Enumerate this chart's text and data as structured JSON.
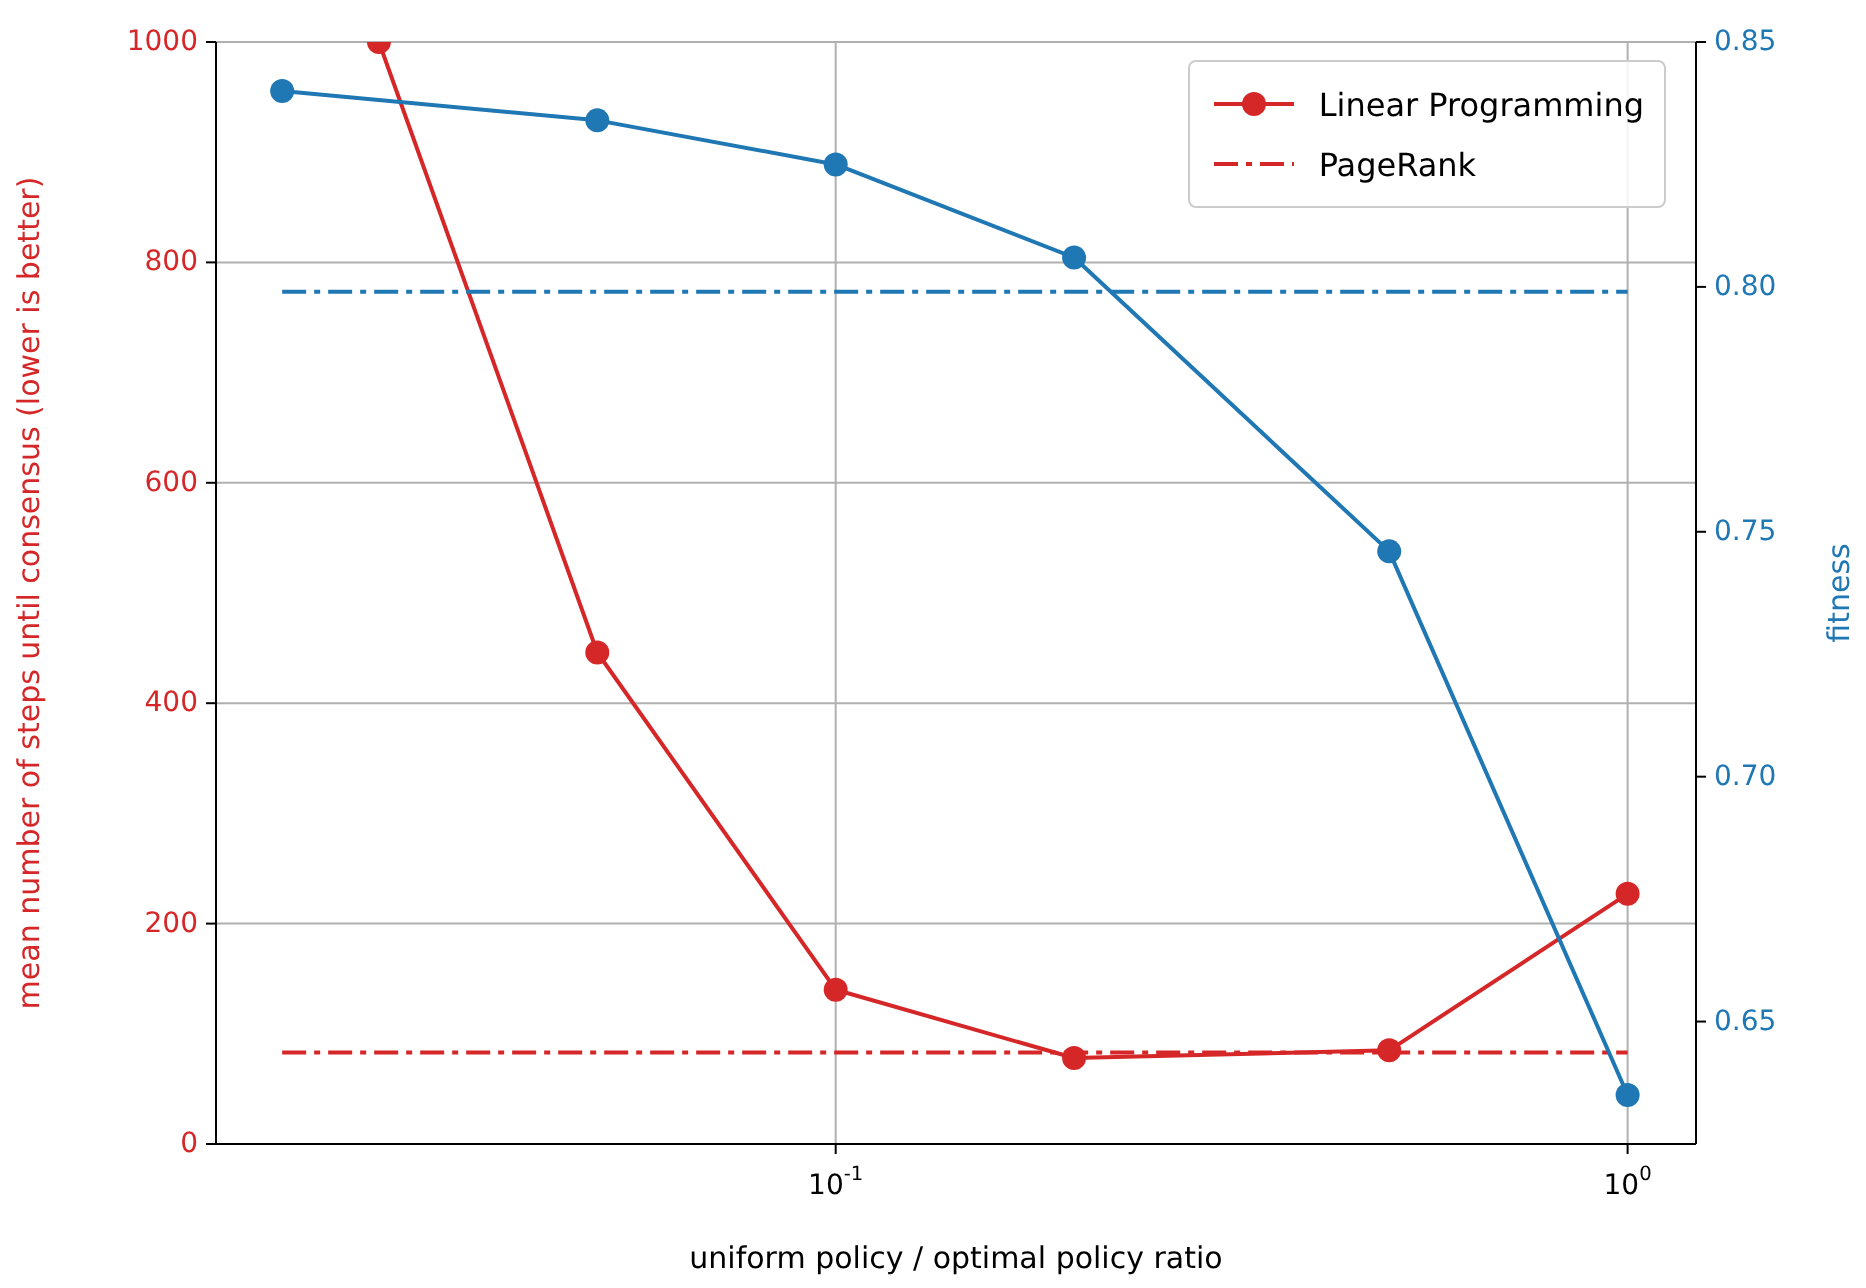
{
  "chart_data": {
    "type": "line",
    "xlabel": "uniform policy / optimal policy ratio",
    "ylabel": "mean number of steps until consensus (lower is better)",
    "y2label": "fitness",
    "log": "x",
    "xlim": [
      0.0165,
      1.22
    ],
    "xticks": [
      {
        "value": 0.1,
        "label": "10$^{-1}$"
      },
      {
        "value": 1,
        "label": "10$^{0}$"
      }
    ],
    "ylim": [
      0,
      1000
    ],
    "yticks": [
      0,
      200,
      400,
      600,
      800,
      1000
    ],
    "y2lim": [
      0.625,
      0.85
    ],
    "y2ticks": [
      0.65,
      {
        "value": 0.7,
        "label": "0.70"
      },
      0.75,
      {
        "value": 0.8,
        "label": "0.80"
      },
      0.85
    ],
    "grid": true,
    "legend": "top right",
    "series": [
      {
        "name": "Linear Programming",
        "color": "#d62728",
        "x": [
          0.0265,
          0.05,
          0.1,
          0.2,
          0.5,
          1
        ],
        "values": [
          1000,
          446,
          140,
          78,
          85,
          227
        ],
        "marker": "circle",
        "line_style": "solid"
      },
      {
        "name": "PageRank",
        "color": "#d62728",
        "x": [
          0.02,
          1
        ],
        "values": [
          83,
          83
        ],
        "marker": "none",
        "line_style": "dashdot"
      },
      {
        "color": "#1f77b4",
        "x": [
          0.02,
          0.05,
          0.1,
          0.2,
          0.5,
          1
        ],
        "values": [
          0.84,
          0.834,
          0.825,
          0.806,
          0.746,
          0.635
        ],
        "marker": "circle",
        "line_style": "solid",
        "axis": "y2"
      },
      {
        "color": "#1f77b4",
        "x": [
          0.02,
          1
        ],
        "values": [
          0.799,
          0.799
        ],
        "marker": "none",
        "line_style": "dashdot",
        "axis": "y2"
      }
    ]
  }
}
